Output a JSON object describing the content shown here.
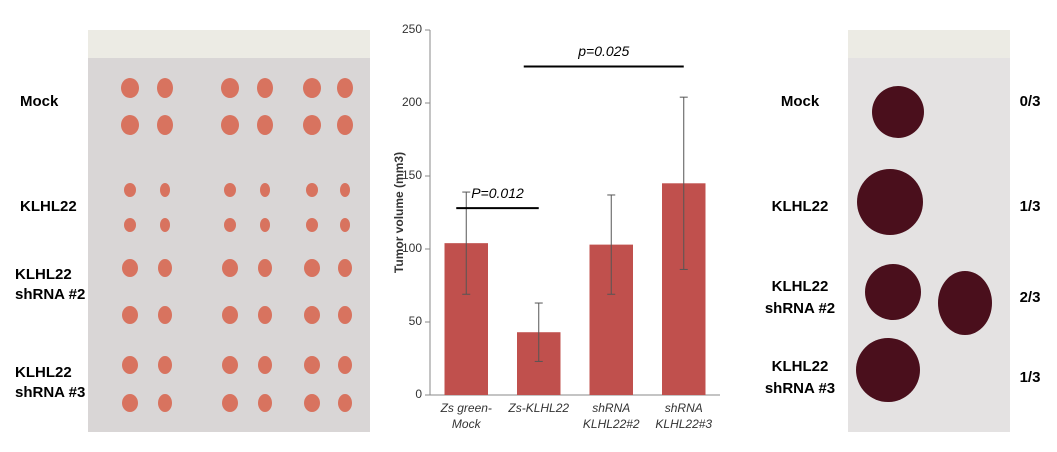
{
  "chart_data": {
    "type": "bar",
    "ylabel": "Tumor volume (mm3)",
    "categories": [
      [
        "Zs green-",
        "Mock"
      ],
      [
        "Zs-KLHL22"
      ],
      [
        "shRNA",
        "KLHL22#2"
      ],
      [
        "shRNA",
        "KLHL22#3"
      ]
    ],
    "values": [
      104,
      43,
      103,
      145
    ],
    "errors": [
      35,
      20,
      34,
      59
    ],
    "color": "#c0504d",
    "ylim": [
      0,
      250
    ],
    "yticks": [
      0,
      50,
      100,
      150,
      200,
      250
    ],
    "annotations": [
      "P=0.012",
      "p=0.025"
    ]
  },
  "left_panel": {
    "labels": [
      [
        "Mock"
      ],
      [
        "KLHL22"
      ],
      [
        "KLHL22",
        "shRNA #2"
      ],
      [
        "KLHL22",
        "shRNA #3"
      ]
    ]
  },
  "right_panel": {
    "labels": [
      [
        "Mock"
      ],
      [
        "KLHL22"
      ],
      [
        "KLHL22",
        "shRNA #2"
      ],
      [
        "KLHL22",
        "shRNA #3"
      ]
    ],
    "ratios": [
      "0/3",
      "1/3",
      "2/3",
      "1/3"
    ]
  }
}
